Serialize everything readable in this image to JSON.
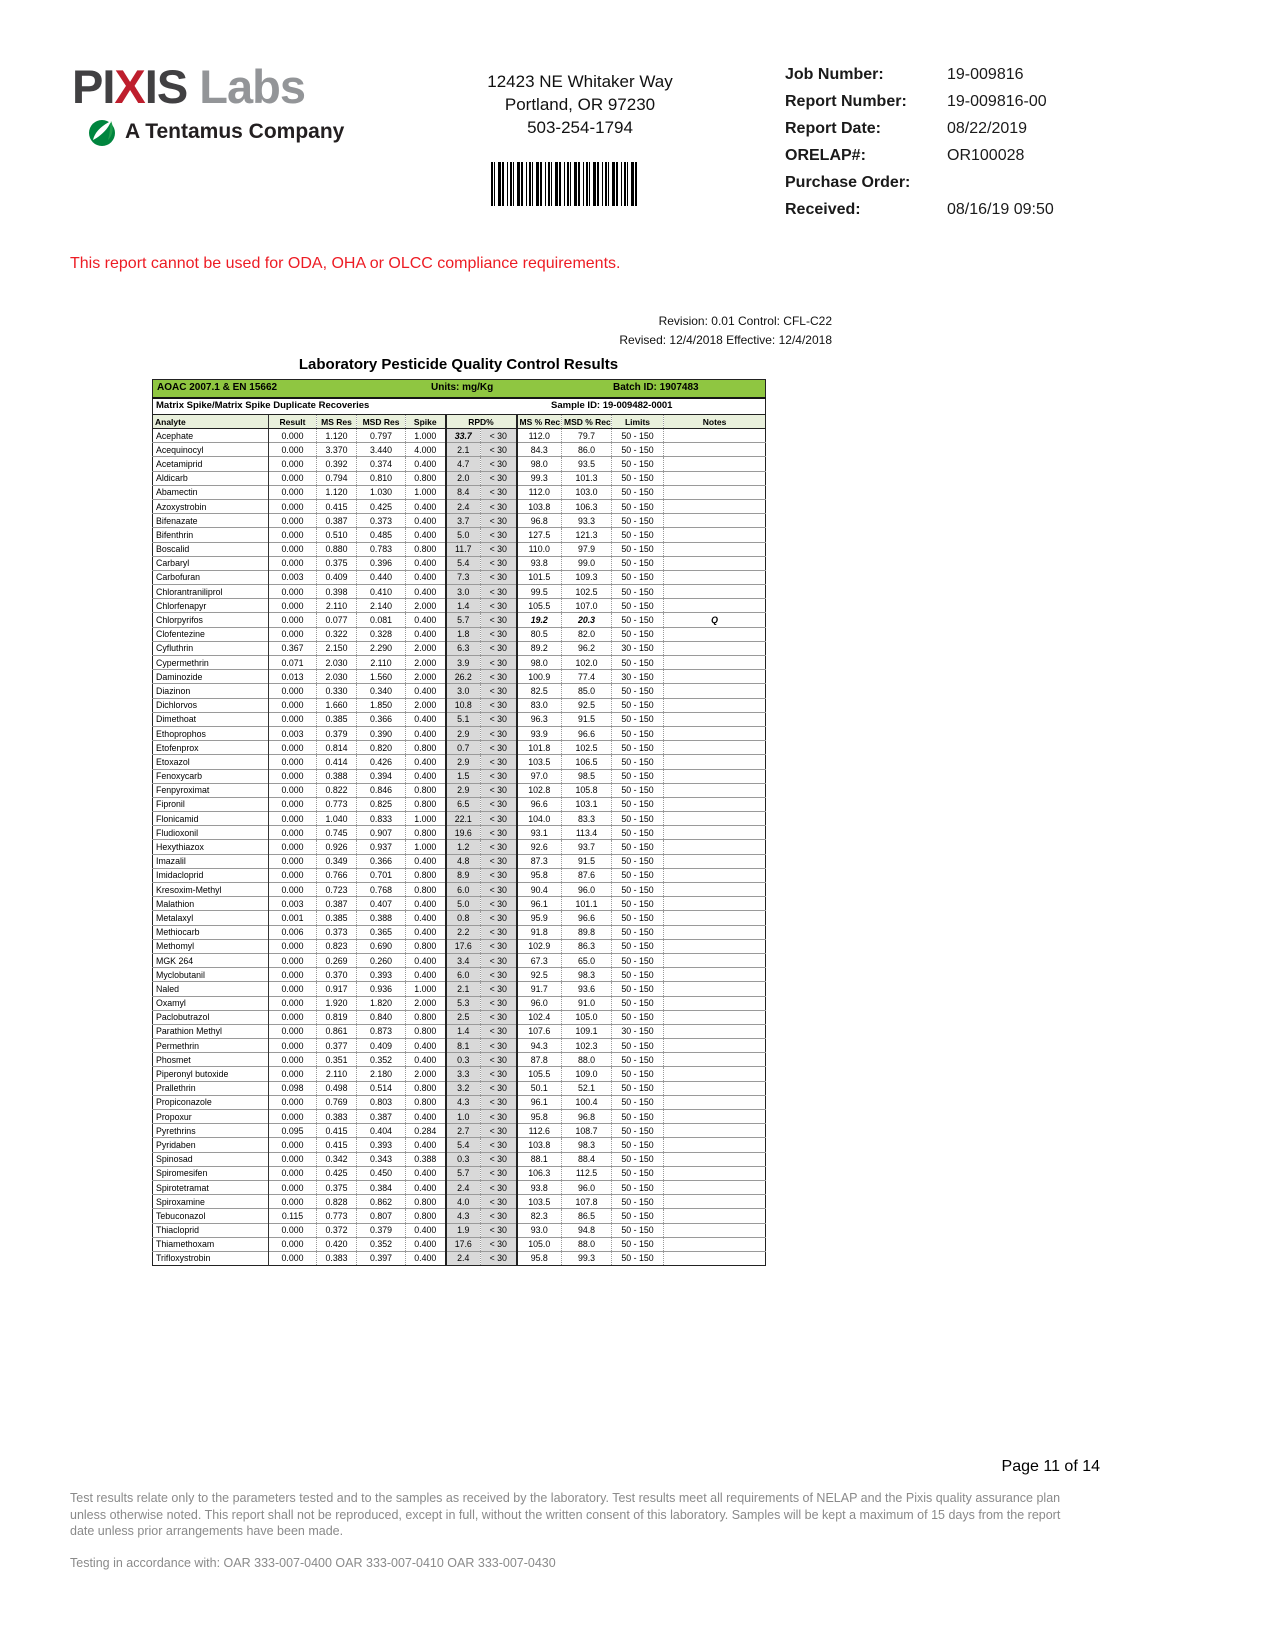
{
  "colors": {
    "green_bar": "#8fc641",
    "header_row_green": "#e9f0dc",
    "rpd_gray": "#d9d9d9",
    "notice_red": "#ed1c24",
    "logo_red": "#be1e2d",
    "logo_gray": "#939598",
    "leaf_green": "#00853e"
  },
  "header": {
    "logo": {
      "part1": "PI",
      "part2": "X",
      "part3": "IS",
      "part4": " Labs",
      "tagline": "A Tentamus Company"
    },
    "address_lines": [
      "12423 NE Whitaker Way",
      "Portland, OR 97230",
      "503-254-1794"
    ],
    "info": [
      {
        "label": "Job Number:",
        "value": "19-009816"
      },
      {
        "label": "Report Number:",
        "value": "19-009816-00"
      },
      {
        "label": "Report Date:",
        "value": "08/22/2019"
      },
      {
        "label": "ORELAP#:",
        "value": "OR100028"
      },
      {
        "label": "Purchase Order:",
        "value": ""
      },
      {
        "label": "Received:",
        "value": "08/16/19  09:50"
      }
    ]
  },
  "notice": "This report cannot be used for ODA, OHA or OLCC compliance requirements.",
  "revision": {
    "line1": "Revision: 0.01 Control: CFL-C22",
    "line2": "Revised: 12/4/2018 Effective: 12/4/2018"
  },
  "qc": {
    "title": "Laboratory Pesticide Quality Control Results",
    "method": "AOAC 2007.1 & EN 15662",
    "units_label": "Units:",
    "units_value": " mg/Kg",
    "batch_label": "Batch ID:",
    "batch_value": " 1907483",
    "section": "Matrix Spike/Matrix Spike Duplicate Recoveries",
    "sample": "Sample ID: 19-009482-0001",
    "columns": [
      "Analyte",
      "Result",
      "MS Res",
      "MSD Res",
      "Spike",
      "RPD%",
      "MS % Rec",
      "MSD % Rec",
      "Limits",
      "Notes"
    ],
    "emphasis": [
      {
        "row": 0,
        "cols": [
          5
        ]
      },
      {
        "row": 13,
        "cols": [
          7,
          8,
          10
        ]
      }
    ],
    "rows": [
      [
        "Acephate",
        "0.000",
        "1.120",
        "0.797",
        "1.000",
        "33.7",
        "< 30",
        "112.0",
        "79.7",
        "50 - 150",
        ""
      ],
      [
        "Acequinocyl",
        "0.000",
        "3.370",
        "3.440",
        "4.000",
        "2.1",
        "< 30",
        "84.3",
        "86.0",
        "50 - 150",
        ""
      ],
      [
        "Acetamiprid",
        "0.000",
        "0.392",
        "0.374",
        "0.400",
        "4.7",
        "< 30",
        "98.0",
        "93.5",
        "50 - 150",
        ""
      ],
      [
        "Aldicarb",
        "0.000",
        "0.794",
        "0.810",
        "0.800",
        "2.0",
        "< 30",
        "99.3",
        "101.3",
        "50 - 150",
        ""
      ],
      [
        "Abamectin",
        "0.000",
        "1.120",
        "1.030",
        "1.000",
        "8.4",
        "< 30",
        "112.0",
        "103.0",
        "50 - 150",
        ""
      ],
      [
        "Azoxystrobin",
        "0.000",
        "0.415",
        "0.425",
        "0.400",
        "2.4",
        "< 30",
        "103.8",
        "106.3",
        "50 - 150",
        ""
      ],
      [
        "Bifenazate",
        "0.000",
        "0.387",
        "0.373",
        "0.400",
        "3.7",
        "< 30",
        "96.8",
        "93.3",
        "50 - 150",
        ""
      ],
      [
        "Bifenthrin",
        "0.000",
        "0.510",
        "0.485",
        "0.400",
        "5.0",
        "< 30",
        "127.5",
        "121.3",
        "50 - 150",
        ""
      ],
      [
        "Boscalid",
        "0.000",
        "0.880",
        "0.783",
        "0.800",
        "11.7",
        "< 30",
        "110.0",
        "97.9",
        "50 - 150",
        ""
      ],
      [
        "Carbaryl",
        "0.000",
        "0.375",
        "0.396",
        "0.400",
        "5.4",
        "< 30",
        "93.8",
        "99.0",
        "50 - 150",
        ""
      ],
      [
        "Carbofuran",
        "0.003",
        "0.409",
        "0.440",
        "0.400",
        "7.3",
        "< 30",
        "101.5",
        "109.3",
        "50 - 150",
        ""
      ],
      [
        "Chlorantraniliprol",
        "0.000",
        "0.398",
        "0.410",
        "0.400",
        "3.0",
        "< 30",
        "99.5",
        "102.5",
        "50 - 150",
        ""
      ],
      [
        "Chlorfenapyr",
        "0.000",
        "2.110",
        "2.140",
        "2.000",
        "1.4",
        "< 30",
        "105.5",
        "107.0",
        "50 - 150",
        ""
      ],
      [
        "Chlorpyrifos",
        "0.000",
        "0.077",
        "0.081",
        "0.400",
        "5.7",
        "< 30",
        "19.2",
        "20.3",
        "50 - 150",
        "Q"
      ],
      [
        "Clofentezine",
        "0.000",
        "0.322",
        "0.328",
        "0.400",
        "1.8",
        "< 30",
        "80.5",
        "82.0",
        "50 - 150",
        ""
      ],
      [
        "Cyfluthrin",
        "0.367",
        "2.150",
        "2.290",
        "2.000",
        "6.3",
        "< 30",
        "89.2",
        "96.2",
        "30 - 150",
        ""
      ],
      [
        "Cypermethrin",
        "0.071",
        "2.030",
        "2.110",
        "2.000",
        "3.9",
        "< 30",
        "98.0",
        "102.0",
        "50 - 150",
        ""
      ],
      [
        "Daminozide",
        "0.013",
        "2.030",
        "1.560",
        "2.000",
        "26.2",
        "< 30",
        "100.9",
        "77.4",
        "30 - 150",
        ""
      ],
      [
        "Diazinon",
        "0.000",
        "0.330",
        "0.340",
        "0.400",
        "3.0",
        "< 30",
        "82.5",
        "85.0",
        "50 - 150",
        ""
      ],
      [
        "Dichlorvos",
        "0.000",
        "1.660",
        "1.850",
        "2.000",
        "10.8",
        "< 30",
        "83.0",
        "92.5",
        "50 - 150",
        ""
      ],
      [
        "Dimethoat",
        "0.000",
        "0.385",
        "0.366",
        "0.400",
        "5.1",
        "< 30",
        "96.3",
        "91.5",
        "50 - 150",
        ""
      ],
      [
        "Ethoprophos",
        "0.003",
        "0.379",
        "0.390",
        "0.400",
        "2.9",
        "< 30",
        "93.9",
        "96.6",
        "50 - 150",
        ""
      ],
      [
        "Etofenprox",
        "0.000",
        "0.814",
        "0.820",
        "0.800",
        "0.7",
        "< 30",
        "101.8",
        "102.5",
        "50 - 150",
        ""
      ],
      [
        "Etoxazol",
        "0.000",
        "0.414",
        "0.426",
        "0.400",
        "2.9",
        "< 30",
        "103.5",
        "106.5",
        "50 - 150",
        ""
      ],
      [
        "Fenoxycarb",
        "0.000",
        "0.388",
        "0.394",
        "0.400",
        "1.5",
        "< 30",
        "97.0",
        "98.5",
        "50 - 150",
        ""
      ],
      [
        "Fenpyroximat",
        "0.000",
        "0.822",
        "0.846",
        "0.800",
        "2.9",
        "< 30",
        "102.8",
        "105.8",
        "50 - 150",
        ""
      ],
      [
        "Fipronil",
        "0.000",
        "0.773",
        "0.825",
        "0.800",
        "6.5",
        "< 30",
        "96.6",
        "103.1",
        "50 - 150",
        ""
      ],
      [
        "Flonicamid",
        "0.000",
        "1.040",
        "0.833",
        "1.000",
        "22.1",
        "< 30",
        "104.0",
        "83.3",
        "50 - 150",
        ""
      ],
      [
        "Fludioxonil",
        "0.000",
        "0.745",
        "0.907",
        "0.800",
        "19.6",
        "< 30",
        "93.1",
        "113.4",
        "50 - 150",
        ""
      ],
      [
        "Hexythiazox",
        "0.000",
        "0.926",
        "0.937",
        "1.000",
        "1.2",
        "< 30",
        "92.6",
        "93.7",
        "50 - 150",
        ""
      ],
      [
        "Imazalil",
        "0.000",
        "0.349",
        "0.366",
        "0.400",
        "4.8",
        "< 30",
        "87.3",
        "91.5",
        "50 - 150",
        ""
      ],
      [
        "Imidacloprid",
        "0.000",
        "0.766",
        "0.701",
        "0.800",
        "8.9",
        "< 30",
        "95.8",
        "87.6",
        "50 - 150",
        ""
      ],
      [
        "Kresoxim-Methyl",
        "0.000",
        "0.723",
        "0.768",
        "0.800",
        "6.0",
        "< 30",
        "90.4",
        "96.0",
        "50 - 150",
        ""
      ],
      [
        "Malathion",
        "0.003",
        "0.387",
        "0.407",
        "0.400",
        "5.0",
        "< 30",
        "96.1",
        "101.1",
        "50 - 150",
        ""
      ],
      [
        "Metalaxyl",
        "0.001",
        "0.385",
        "0.388",
        "0.400",
        "0.8",
        "< 30",
        "95.9",
        "96.6",
        "50 - 150",
        ""
      ],
      [
        "Methiocarb",
        "0.006",
        "0.373",
        "0.365",
        "0.400",
        "2.2",
        "< 30",
        "91.8",
        "89.8",
        "50 - 150",
        ""
      ],
      [
        "Methomyl",
        "0.000",
        "0.823",
        "0.690",
        "0.800",
        "17.6",
        "< 30",
        "102.9",
        "86.3",
        "50 - 150",
        ""
      ],
      [
        "MGK 264",
        "0.000",
        "0.269",
        "0.260",
        "0.400",
        "3.4",
        "< 30",
        "67.3",
        "65.0",
        "50 - 150",
        ""
      ],
      [
        "Myclobutanil",
        "0.000",
        "0.370",
        "0.393",
        "0.400",
        "6.0",
        "< 30",
        "92.5",
        "98.3",
        "50 - 150",
        ""
      ],
      [
        "Naled",
        "0.000",
        "0.917",
        "0.936",
        "1.000",
        "2.1",
        "< 30",
        "91.7",
        "93.6",
        "50 - 150",
        ""
      ],
      [
        "Oxamyl",
        "0.000",
        "1.920",
        "1.820",
        "2.000",
        "5.3",
        "< 30",
        "96.0",
        "91.0",
        "50 - 150",
        ""
      ],
      [
        "Paclobutrazol",
        "0.000",
        "0.819",
        "0.840",
        "0.800",
        "2.5",
        "< 30",
        "102.4",
        "105.0",
        "50 - 150",
        ""
      ],
      [
        "Parathion Methyl",
        "0.000",
        "0.861",
        "0.873",
        "0.800",
        "1.4",
        "< 30",
        "107.6",
        "109.1",
        "30 - 150",
        ""
      ],
      [
        "Permethrin",
        "0.000",
        "0.377",
        "0.409",
        "0.400",
        "8.1",
        "< 30",
        "94.3",
        "102.3",
        "50 - 150",
        ""
      ],
      [
        "Phosmet",
        "0.000",
        "0.351",
        "0.352",
        "0.400",
        "0.3",
        "< 30",
        "87.8",
        "88.0",
        "50 - 150",
        ""
      ],
      [
        "Piperonyl butoxide",
        "0.000",
        "2.110",
        "2.180",
        "2.000",
        "3.3",
        "< 30",
        "105.5",
        "109.0",
        "50 - 150",
        ""
      ],
      [
        "Prallethrin",
        "0.098",
        "0.498",
        "0.514",
        "0.800",
        "3.2",
        "< 30",
        "50.1",
        "52.1",
        "50 - 150",
        ""
      ],
      [
        "Propiconazole",
        "0.000",
        "0.769",
        "0.803",
        "0.800",
        "4.3",
        "< 30",
        "96.1",
        "100.4",
        "50 - 150",
        ""
      ],
      [
        "Propoxur",
        "0.000",
        "0.383",
        "0.387",
        "0.400",
        "1.0",
        "< 30",
        "95.8",
        "96.8",
        "50 - 150",
        ""
      ],
      [
        "Pyrethrins",
        "0.095",
        "0.415",
        "0.404",
        "0.284",
        "2.7",
        "< 30",
        "112.6",
        "108.7",
        "50 - 150",
        ""
      ],
      [
        "Pyridaben",
        "0.000",
        "0.415",
        "0.393",
        "0.400",
        "5.4",
        "< 30",
        "103.8",
        "98.3",
        "50 - 150",
        ""
      ],
      [
        "Spinosad",
        "0.000",
        "0.342",
        "0.343",
        "0.388",
        "0.3",
        "< 30",
        "88.1",
        "88.4",
        "50 - 150",
        ""
      ],
      [
        "Spiromesifen",
        "0.000",
        "0.425",
        "0.450",
        "0.400",
        "5.7",
        "< 30",
        "106.3",
        "112.5",
        "50 - 150",
        ""
      ],
      [
        "Spirotetramat",
        "0.000",
        "0.375",
        "0.384",
        "0.400",
        "2.4",
        "< 30",
        "93.8",
        "96.0",
        "50 - 150",
        ""
      ],
      [
        "Spiroxamine",
        "0.000",
        "0.828",
        "0.862",
        "0.800",
        "4.0",
        "< 30",
        "103.5",
        "107.8",
        "50 - 150",
        ""
      ],
      [
        "Tebuconazol",
        "0.115",
        "0.773",
        "0.807",
        "0.800",
        "4.3",
        "< 30",
        "82.3",
        "86.5",
        "50 - 150",
        ""
      ],
      [
        "Thiacloprid",
        "0.000",
        "0.372",
        "0.379",
        "0.400",
        "1.9",
        "< 30",
        "93.0",
        "94.8",
        "50 - 150",
        ""
      ],
      [
        "Thiamethoxam",
        "0.000",
        "0.420",
        "0.352",
        "0.400",
        "17.6",
        "< 30",
        "105.0",
        "88.0",
        "50 - 150",
        ""
      ],
      [
        "Trifloxystrobin",
        "0.000",
        "0.383",
        "0.397",
        "0.400",
        "2.4",
        "< 30",
        "95.8",
        "99.3",
        "50 - 150",
        ""
      ]
    ]
  },
  "footer": {
    "page": "Page 11 of 14",
    "disclaimer": "Test results relate only to the parameters tested and to the samples as received by the laboratory. Test results meet all requirements of NELAP and the Pixis quality assurance plan unless otherwise noted. This report shall not be reproduced, except in full, without the written consent of this laboratory. Samples will be kept a maximum of 15 days from the report date unless prior arrangements have been made.",
    "testing": "Testing in accordance with:  OAR 333-007-0400 OAR 333-007-0410  OAR 333-007-0430"
  }
}
